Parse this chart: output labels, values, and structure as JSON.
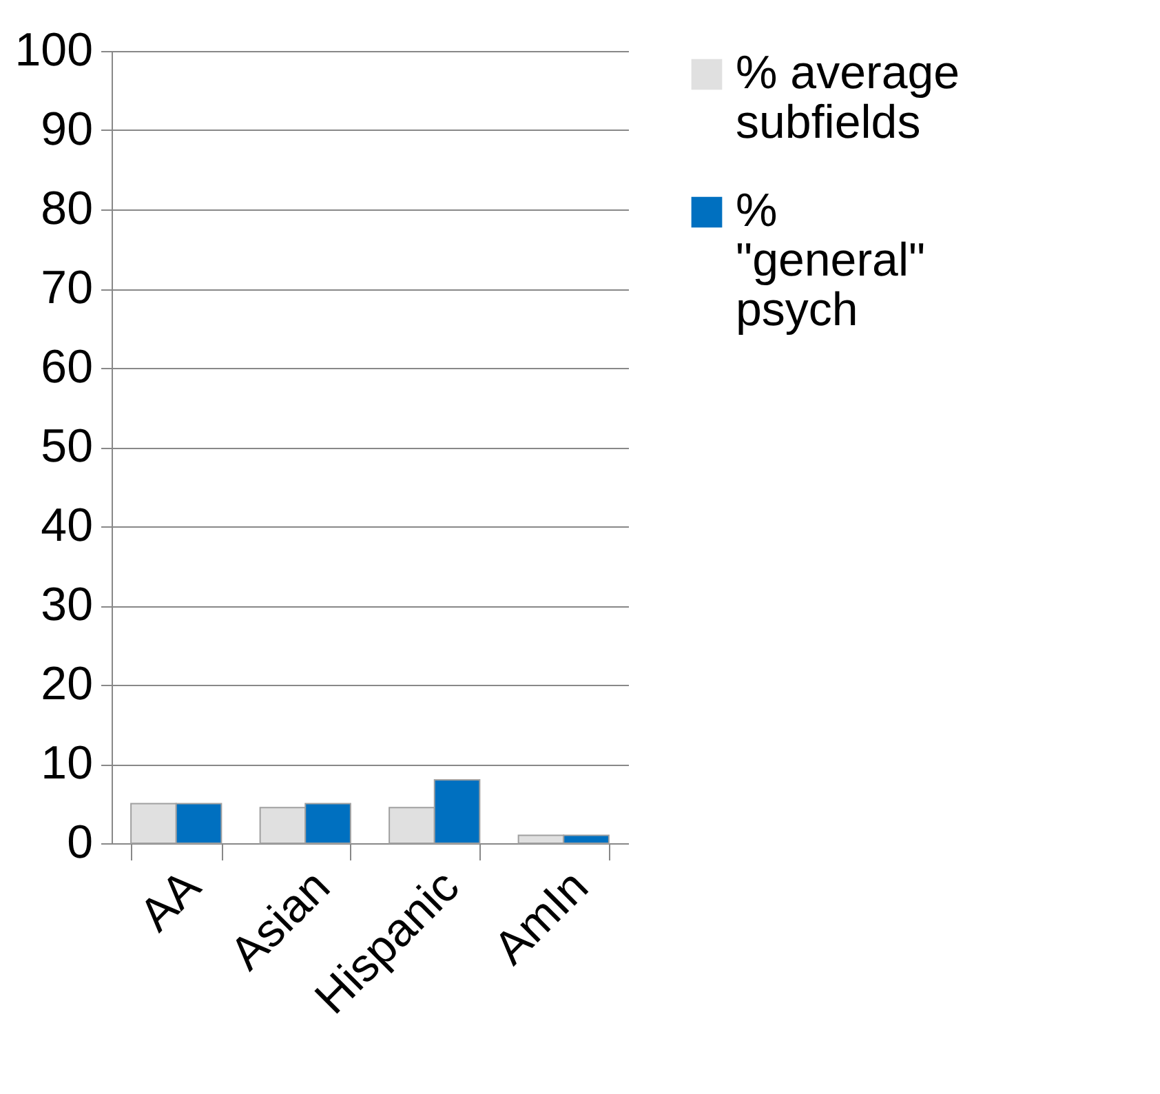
{
  "chart_data": {
    "type": "bar",
    "categories": [
      "AA",
      "Asian",
      "Hispanic",
      "AmIn"
    ],
    "series": [
      {
        "name": "% average subfields",
        "color": "#e0e0e0",
        "values": [
          5,
          4.5,
          4.5,
          1
        ]
      },
      {
        "name": "% \"general\" psych",
        "color": "#0070c0",
        "values": [
          5,
          5,
          8,
          1
        ]
      }
    ],
    "ylim": [
      0,
      100
    ],
    "yticks": [
      0,
      10,
      20,
      30,
      40,
      50,
      60,
      70,
      80,
      90,
      100
    ],
    "grid": "y",
    "legend": "right"
  }
}
